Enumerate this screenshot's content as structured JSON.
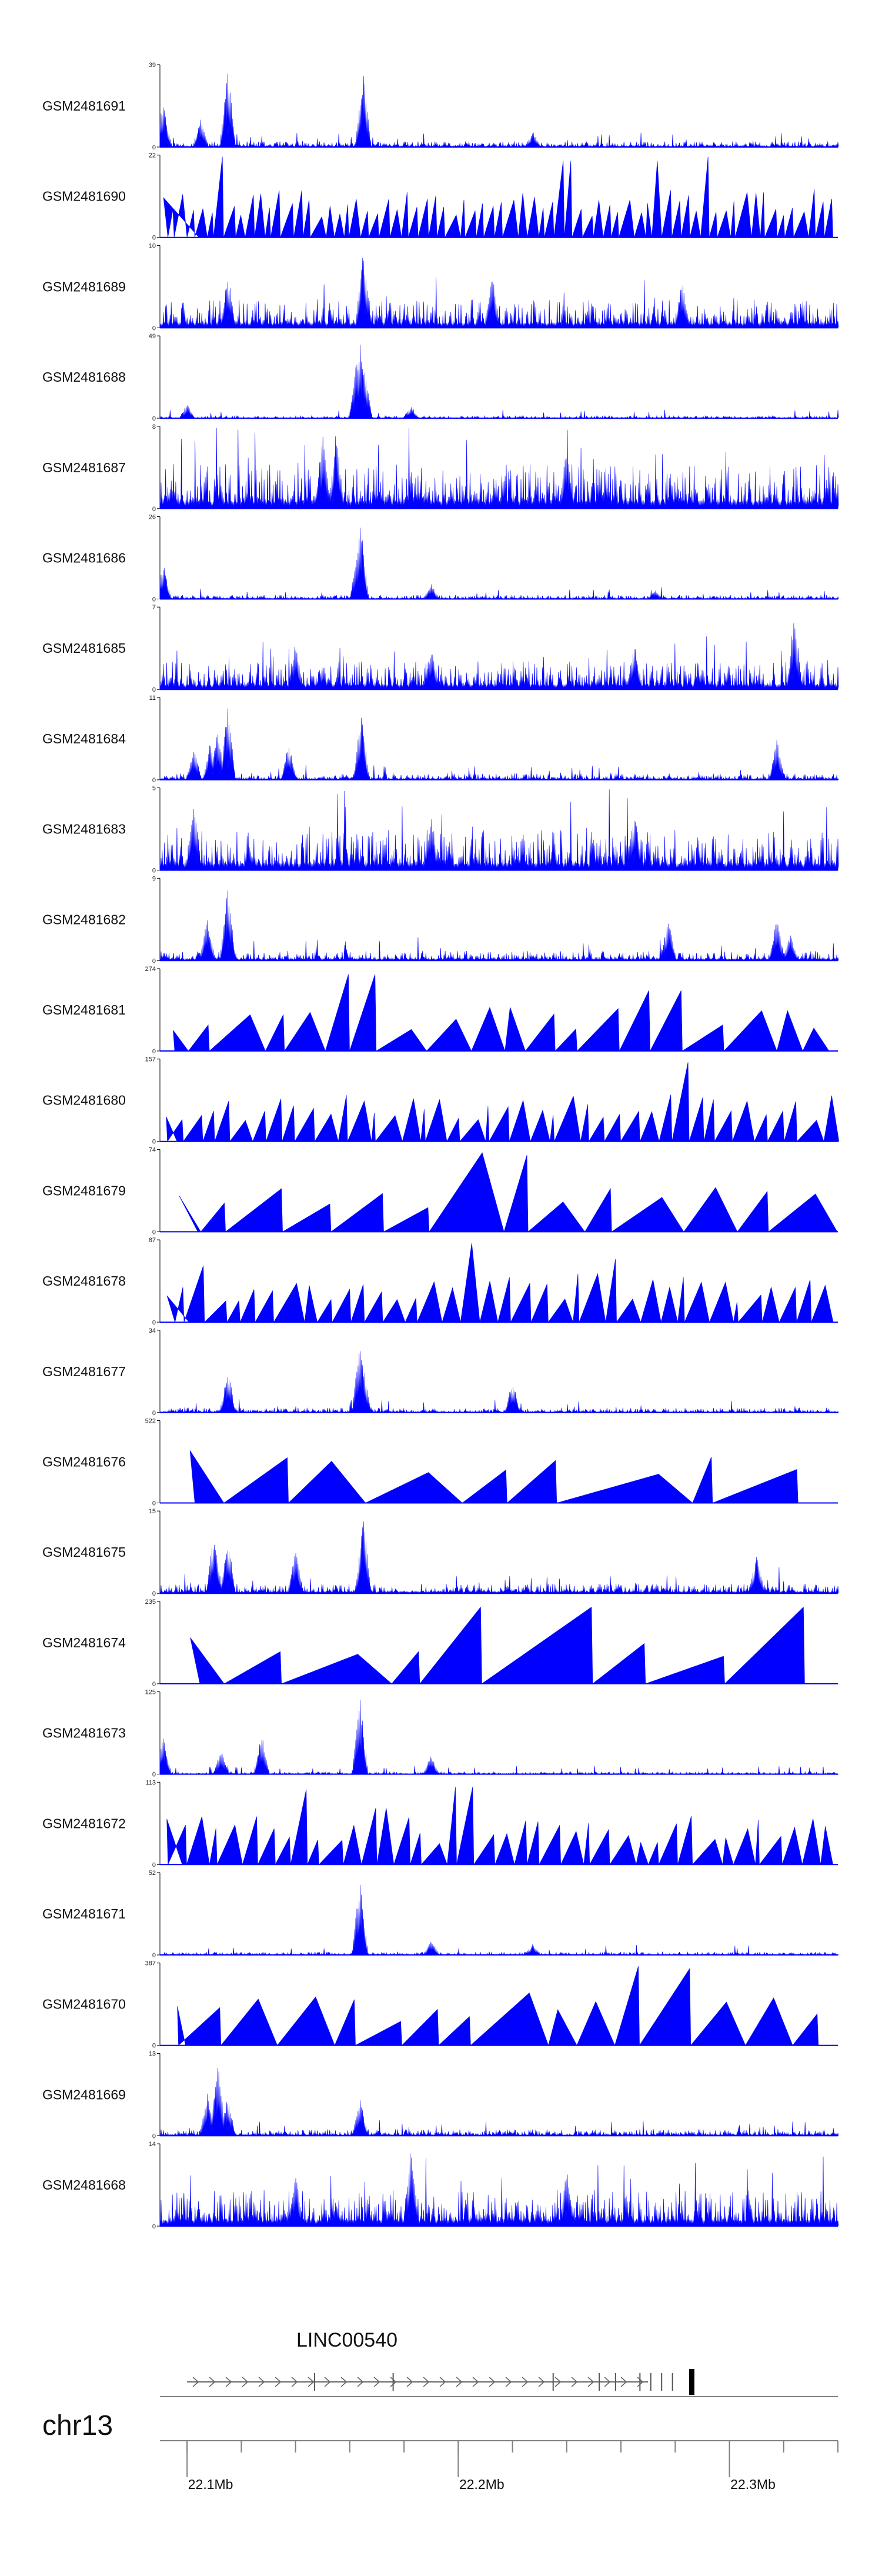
{
  "chart_data": {
    "type": "area",
    "title": "",
    "colors": {
      "fill": "#0000ff",
      "axis": "#000000",
      "muted": "#808080"
    },
    "tracks": [
      {
        "name": "GSM2481691",
        "ymax": "39",
        "ymin": "0",
        "style": "noise",
        "seed": 11,
        "base": 0.07,
        "peaks": [
          [
            0.005,
            0.6
          ],
          [
            0.1,
            1.0
          ],
          [
            0.3,
            0.95
          ],
          [
            0.06,
            0.35
          ],
          [
            0.55,
            0.2
          ]
        ]
      },
      {
        "name": "GSM2481690",
        "ymax": "22",
        "ymin": "0",
        "style": "tri",
        "seed": 21,
        "n": 70,
        "tall": [
          [
            0.1,
            1.0
          ],
          [
            0.6,
            0.95
          ],
          [
            0.74,
            0.95
          ],
          [
            0.8,
            1.0
          ],
          [
            0.9,
            0.9
          ]
        ]
      },
      {
        "name": "GSM2481689",
        "ymax": "10",
        "ymin": "0",
        "style": "noise",
        "seed": 31,
        "base": 0.35,
        "peaks": [
          [
            0.3,
            1.0
          ],
          [
            0.1,
            0.7
          ],
          [
            0.49,
            0.7
          ],
          [
            0.77,
            0.6
          ]
        ]
      },
      {
        "name": "GSM2481688",
        "ymax": "49",
        "ymin": "0",
        "style": "noise",
        "seed": 41,
        "base": 0.03,
        "peaks": [
          [
            0.296,
            0.95
          ],
          [
            0.29,
            0.7
          ],
          [
            0.302,
            0.6
          ],
          [
            0.04,
            0.18
          ],
          [
            0.37,
            0.15
          ]
        ]
      },
      {
        "name": "GSM2481687",
        "ymax": "8",
        "ymin": "0",
        "style": "noise",
        "seed": 51,
        "base": 0.55,
        "peaks": [
          [
            0.24,
            0.95
          ],
          [
            0.26,
            1.0
          ],
          [
            0.6,
            0.8
          ]
        ]
      },
      {
        "name": "GSM2481686",
        "ymax": "26",
        "ymin": "0",
        "style": "noise",
        "seed": 61,
        "base": 0.05,
        "peaks": [
          [
            0.296,
            1.0
          ],
          [
            0.292,
            0.7
          ],
          [
            0.005,
            0.45
          ],
          [
            0.4,
            0.2
          ],
          [
            0.73,
            0.12
          ]
        ]
      },
      {
        "name": "GSM2481685",
        "ymax": "7",
        "ymin": "0",
        "style": "noise",
        "seed": 71,
        "base": 0.35,
        "peaks": [
          [
            0.936,
            0.98
          ],
          [
            0.2,
            0.6
          ],
          [
            0.7,
            0.6
          ],
          [
            0.4,
            0.55
          ]
        ]
      },
      {
        "name": "GSM2481684",
        "ymax": "11",
        "ymin": "0",
        "style": "noise",
        "seed": 81,
        "base": 0.08,
        "peaks": [
          [
            0.1,
            0.95
          ],
          [
            0.085,
            0.7
          ],
          [
            0.075,
            0.5
          ],
          [
            0.297,
            0.85
          ],
          [
            0.19,
            0.45
          ],
          [
            0.91,
            0.5
          ],
          [
            0.05,
            0.4
          ]
        ]
      },
      {
        "name": "GSM2481683",
        "ymax": "5",
        "ymin": "0",
        "style": "noise",
        "seed": 91,
        "base": 0.5,
        "peaks": [
          [
            0.05,
            0.9
          ],
          [
            0.7,
            0.8
          ],
          [
            0.4,
            0.75
          ]
        ]
      },
      {
        "name": "GSM2481682",
        "ymax": "9",
        "ymin": "0",
        "style": "noise",
        "seed": 101,
        "base": 0.12,
        "peaks": [
          [
            0.1,
            0.95
          ],
          [
            0.91,
            0.55
          ],
          [
            0.75,
            0.55
          ],
          [
            0.07,
            0.55
          ],
          [
            0.93,
            0.35
          ]
        ]
      },
      {
        "name": "GSM2481681",
        "ymax": "274",
        "ymin": "0",
        "style": "tri",
        "seed": 111,
        "n": 20,
        "tall": [
          [
            0.29,
            0.95
          ],
          [
            0.74,
            0.75
          ],
          [
            0.16,
            0.45
          ],
          [
            0.9,
            0.5
          ]
        ]
      },
      {
        "name": "GSM2481680",
        "ymax": "157",
        "ymin": "0",
        "style": "tri",
        "seed": 121,
        "n": 42,
        "tall": [
          [
            0.78,
            0.98
          ],
          [
            0.1,
            0.5
          ],
          [
            0.3,
            0.5
          ],
          [
            0.88,
            0.5
          ]
        ]
      },
      {
        "name": "GSM2481679",
        "ymax": "74",
        "ymin": "0",
        "style": "tri",
        "seed": 131,
        "n": 14,
        "tall": [
          [
            0.49,
            0.98
          ],
          [
            0.54,
            0.95
          ],
          [
            0.88,
            0.5
          ]
        ]
      },
      {
        "name": "GSM2481678",
        "ymax": "87",
        "ymin": "0",
        "style": "tri",
        "seed": 141,
        "n": 38,
        "tall": [
          [
            0.46,
            0.98
          ],
          [
            0.05,
            0.7
          ],
          [
            0.68,
            0.78
          ],
          [
            0.63,
            0.6
          ]
        ]
      },
      {
        "name": "GSM2481677",
        "ymax": "34",
        "ymin": "0",
        "style": "noise",
        "seed": 151,
        "base": 0.06,
        "peaks": [
          [
            0.295,
            1.0
          ],
          [
            0.1,
            0.55
          ],
          [
            0.52,
            0.4
          ],
          [
            0.3,
            0.6
          ]
        ]
      },
      {
        "name": "GSM2481676",
        "ymax": "522",
        "ymin": "0",
        "style": "tri",
        "seed": 161,
        "n": 9,
        "tall": [
          [
            0.1,
            0.65
          ]
        ]
      },
      {
        "name": "GSM2481675",
        "ymax": "15",
        "ymin": "0",
        "style": "noise",
        "seed": 171,
        "base": 0.12,
        "peaks": [
          [
            0.08,
            0.8
          ],
          [
            0.1,
            0.7
          ],
          [
            0.3,
            0.98
          ],
          [
            0.2,
            0.55
          ],
          [
            0.88,
            0.5
          ]
        ]
      },
      {
        "name": "GSM2481674",
        "ymax": "235",
        "ymin": "0",
        "style": "tri",
        "seed": 181,
        "n": 9,
        "tall": [
          [
            0.45,
            0.95
          ],
          [
            0.57,
            0.95
          ],
          [
            0.9,
            0.95
          ]
        ]
      },
      {
        "name": "GSM2481673",
        "ymax": "125",
        "ymin": "0",
        "style": "noise",
        "seed": 191,
        "base": 0.03,
        "peaks": [
          [
            0.295,
            0.98
          ],
          [
            0.15,
            0.5
          ],
          [
            0.005,
            0.5
          ],
          [
            0.09,
            0.3
          ],
          [
            0.4,
            0.25
          ]
        ]
      },
      {
        "name": "GSM2481672",
        "ymax": "113",
        "ymin": "0",
        "style": "tri",
        "seed": 201,
        "n": 40,
        "tall": [
          [
            0.8,
            0.98
          ],
          [
            0.45,
            0.96
          ],
          [
            0.21,
            0.93
          ],
          [
            0.33,
            0.7
          ]
        ]
      },
      {
        "name": "GSM2481671",
        "ymax": "52",
        "ymin": "0",
        "style": "noise",
        "seed": 211,
        "base": 0.04,
        "peaks": [
          [
            0.295,
            0.98
          ],
          [
            0.4,
            0.2
          ],
          [
            0.55,
            0.15
          ]
        ]
      },
      {
        "name": "GSM2481670",
        "ymax": "387",
        "ymin": "0",
        "style": "tri",
        "seed": 221,
        "n": 16,
        "tall": [
          [
            0.72,
            0.98
          ],
          [
            0.76,
            0.95
          ],
          [
            0.53,
            0.65
          ],
          [
            0.24,
            0.6
          ]
        ]
      },
      {
        "name": "GSM2481669",
        "ymax": "13",
        "ymin": "0",
        "style": "noise",
        "seed": 231,
        "base": 0.08,
        "peaks": [
          [
            0.085,
            0.98
          ],
          [
            0.07,
            0.55
          ],
          [
            0.295,
            0.5
          ],
          [
            0.1,
            0.5
          ]
        ]
      },
      {
        "name": "GSM2481668",
        "ymax": "14",
        "ymin": "0",
        "style": "noise",
        "seed": 241,
        "base": 0.45,
        "peaks": [
          [
            0.37,
            1.0
          ],
          [
            0.2,
            0.7
          ],
          [
            0.6,
            0.7
          ]
        ]
      }
    ],
    "gene": {
      "name": "LINC00540",
      "start": 22.1,
      "end": 22.27,
      "exons": [
        22.147,
        22.176,
        22.235,
        22.252,
        22.258,
        22.267,
        22.271,
        22.275,
        22.279
      ],
      "end_block": 22.286
    },
    "axis": {
      "chrom": "chr13",
      "xlim": [
        22.09,
        22.34
      ],
      "minor_ticks": [
        22.1,
        22.12,
        22.14,
        22.16,
        22.18,
        22.2,
        22.22,
        22.24,
        22.26,
        22.28,
        22.3,
        22.32,
        22.34
      ],
      "major_ticks": [
        22.1,
        22.2,
        22.3
      ],
      "tick_labels": [
        "22.1Mb",
        "22.2Mb",
        "22.3Mb"
      ]
    }
  }
}
